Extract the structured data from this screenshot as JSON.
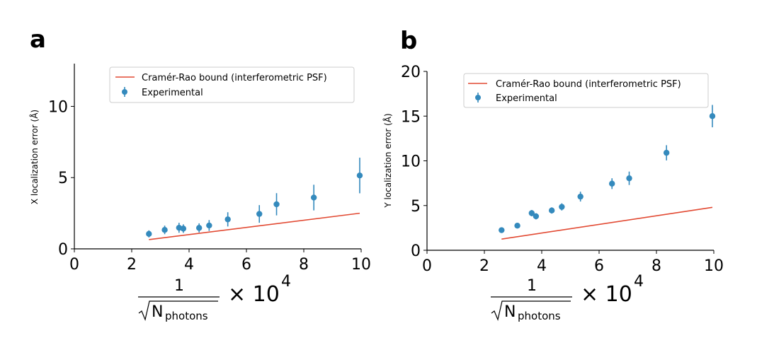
{
  "colors": {
    "bound": "#e24a33",
    "experimental": "#348abd",
    "axis": "#000000"
  },
  "xlabel": {
    "numerator": "1",
    "radicand": "N",
    "subscript": "photons",
    "multiplier": "× 10",
    "exponent": "4"
  },
  "chart_data": [
    {
      "type": "scatter",
      "panel": "a",
      "ylabel": "X localization error (Å)",
      "xlim": [
        0,
        10
      ],
      "ylim": [
        0,
        13
      ],
      "xticks": [
        0,
        2,
        4,
        6,
        8,
        10
      ],
      "yticks": [
        0,
        5,
        10
      ],
      "legend_position": "upper-center",
      "series": [
        {
          "name": "Cramér-Rao bound (interferometric PSF)",
          "kind": "line",
          "x": [
            2.6,
            9.95
          ],
          "y": [
            0.65,
            2.5
          ]
        },
        {
          "name": "Experimental",
          "kind": "errorbar",
          "x": [
            2.6,
            3.15,
            3.65,
            3.8,
            4.35,
            4.7,
            5.35,
            6.45,
            7.05,
            8.35,
            9.95
          ],
          "y": [
            1.05,
            1.33,
            1.48,
            1.42,
            1.47,
            1.64,
            2.07,
            2.45,
            3.13,
            3.6,
            5.15
          ],
          "err": [
            0.25,
            0.3,
            0.35,
            0.3,
            0.32,
            0.38,
            0.5,
            0.62,
            0.78,
            0.9,
            1.25
          ]
        }
      ]
    },
    {
      "type": "scatter",
      "panel": "b",
      "ylabel": "Y localization error (Å)",
      "xlim": [
        0,
        10
      ],
      "ylim": [
        0,
        20
      ],
      "xticks": [
        0,
        2,
        4,
        6,
        8,
        10
      ],
      "yticks": [
        0,
        5,
        10,
        15,
        20
      ],
      "legend_position": "upper-center",
      "series": [
        {
          "name": "Cramér-Rao bound (interferometric PSF)",
          "kind": "line",
          "x": [
            2.6,
            9.95
          ],
          "y": [
            1.25,
            4.8
          ]
        },
        {
          "name": "Experimental",
          "kind": "errorbar",
          "x": [
            2.6,
            3.15,
            3.65,
            3.8,
            4.35,
            4.7,
            5.35,
            6.45,
            7.05,
            8.35,
            9.95
          ],
          "y": [
            2.25,
            2.75,
            4.15,
            3.8,
            4.45,
            4.85,
            6.0,
            7.45,
            8.05,
            10.9,
            15.0
          ],
          "err": [
            0.2,
            0.22,
            0.35,
            0.35,
            0.35,
            0.4,
            0.55,
            0.6,
            0.75,
            0.85,
            1.25
          ]
        }
      ]
    }
  ]
}
